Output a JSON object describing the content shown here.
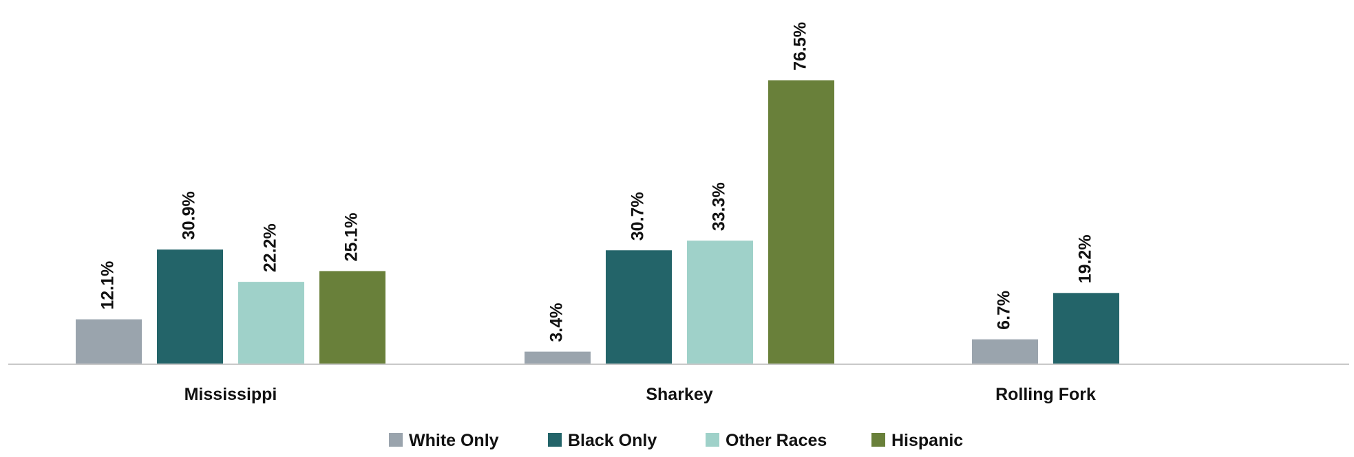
{
  "chart_data": {
    "type": "bar",
    "title": "",
    "xlabel": "",
    "ylabel": "",
    "categories": [
      "Mississippi",
      "Sharkey",
      "Rolling Fork"
    ],
    "series": [
      {
        "name": "White Only",
        "color": "#9aa4ad",
        "values": [
          12.1,
          3.4,
          6.7
        ],
        "labels": [
          "12.1%",
          "3.4%",
          "6.7%"
        ]
      },
      {
        "name": "Black Only",
        "color": "#236469",
        "values": [
          30.9,
          30.7,
          19.2
        ],
        "labels": [
          "30.9%",
          "30.7%",
          "19.2%"
        ]
      },
      {
        "name": "Other Races",
        "color": "#9fd1c9",
        "values": [
          22.2,
          33.3,
          null
        ],
        "labels": [
          "22.2%",
          "33.3%",
          null
        ]
      },
      {
        "name": "Hispanic",
        "color": "#69803a",
        "values": [
          25.1,
          76.5,
          null
        ],
        "labels": [
          "25.1%",
          "76.5%",
          null
        ]
      }
    ],
    "ylim": [
      0,
      100
    ],
    "grid": false,
    "legend_position": "bottom"
  }
}
